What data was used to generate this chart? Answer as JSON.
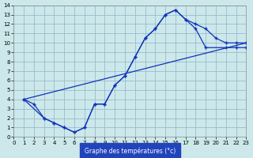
{
  "xlabel": "Graphe des températures (°c)",
  "bg_color": "#cce8ea",
  "grid_color": "#99bbcc",
  "line_color": "#1133bb",
  "xlim": [
    0,
    23
  ],
  "ylim": [
    0,
    14
  ],
  "xticks": [
    0,
    1,
    2,
    3,
    4,
    5,
    6,
    7,
    8,
    9,
    10,
    11,
    12,
    13,
    14,
    15,
    16,
    17,
    18,
    19,
    20,
    21,
    22,
    23
  ],
  "yticks": [
    0,
    1,
    2,
    3,
    4,
    5,
    6,
    7,
    8,
    9,
    10,
    11,
    12,
    13,
    14
  ],
  "curve1_x": [
    1,
    2,
    3,
    4,
    5,
    6,
    7,
    8,
    9,
    10,
    11,
    12,
    13,
    14,
    15,
    16,
    17,
    18,
    19,
    20,
    21,
    22,
    23
  ],
  "curve1_y": [
    4.0,
    3.5,
    2.0,
    1.5,
    1.0,
    0.5,
    1.0,
    3.5,
    3.5,
    5.5,
    6.5,
    8.5,
    10.5,
    11.5,
    13.0,
    13.5,
    12.5,
    12.0,
    11.5,
    10.5,
    10.0,
    10.0,
    10.0
  ],
  "curve2_x": [
    1,
    3,
    4,
    5,
    6,
    7,
    8,
    9,
    10,
    11,
    12,
    13,
    14,
    15,
    16,
    17,
    18,
    19,
    21,
    22,
    23
  ],
  "curve2_y": [
    4.0,
    2.0,
    1.5,
    1.0,
    0.5,
    1.0,
    3.5,
    3.5,
    5.5,
    6.5,
    8.5,
    10.5,
    11.5,
    13.0,
    13.5,
    12.5,
    11.5,
    9.5,
    9.5,
    9.5,
    9.5
  ],
  "curve3_x": [
    1,
    23
  ],
  "curve3_y": [
    4.0,
    10.0
  ],
  "tick_fontsize": 5,
  "xlabel_fontsize": 5.5,
  "xlabel_bg": "#2244bb",
  "xlabel_fg": "#ffffff"
}
